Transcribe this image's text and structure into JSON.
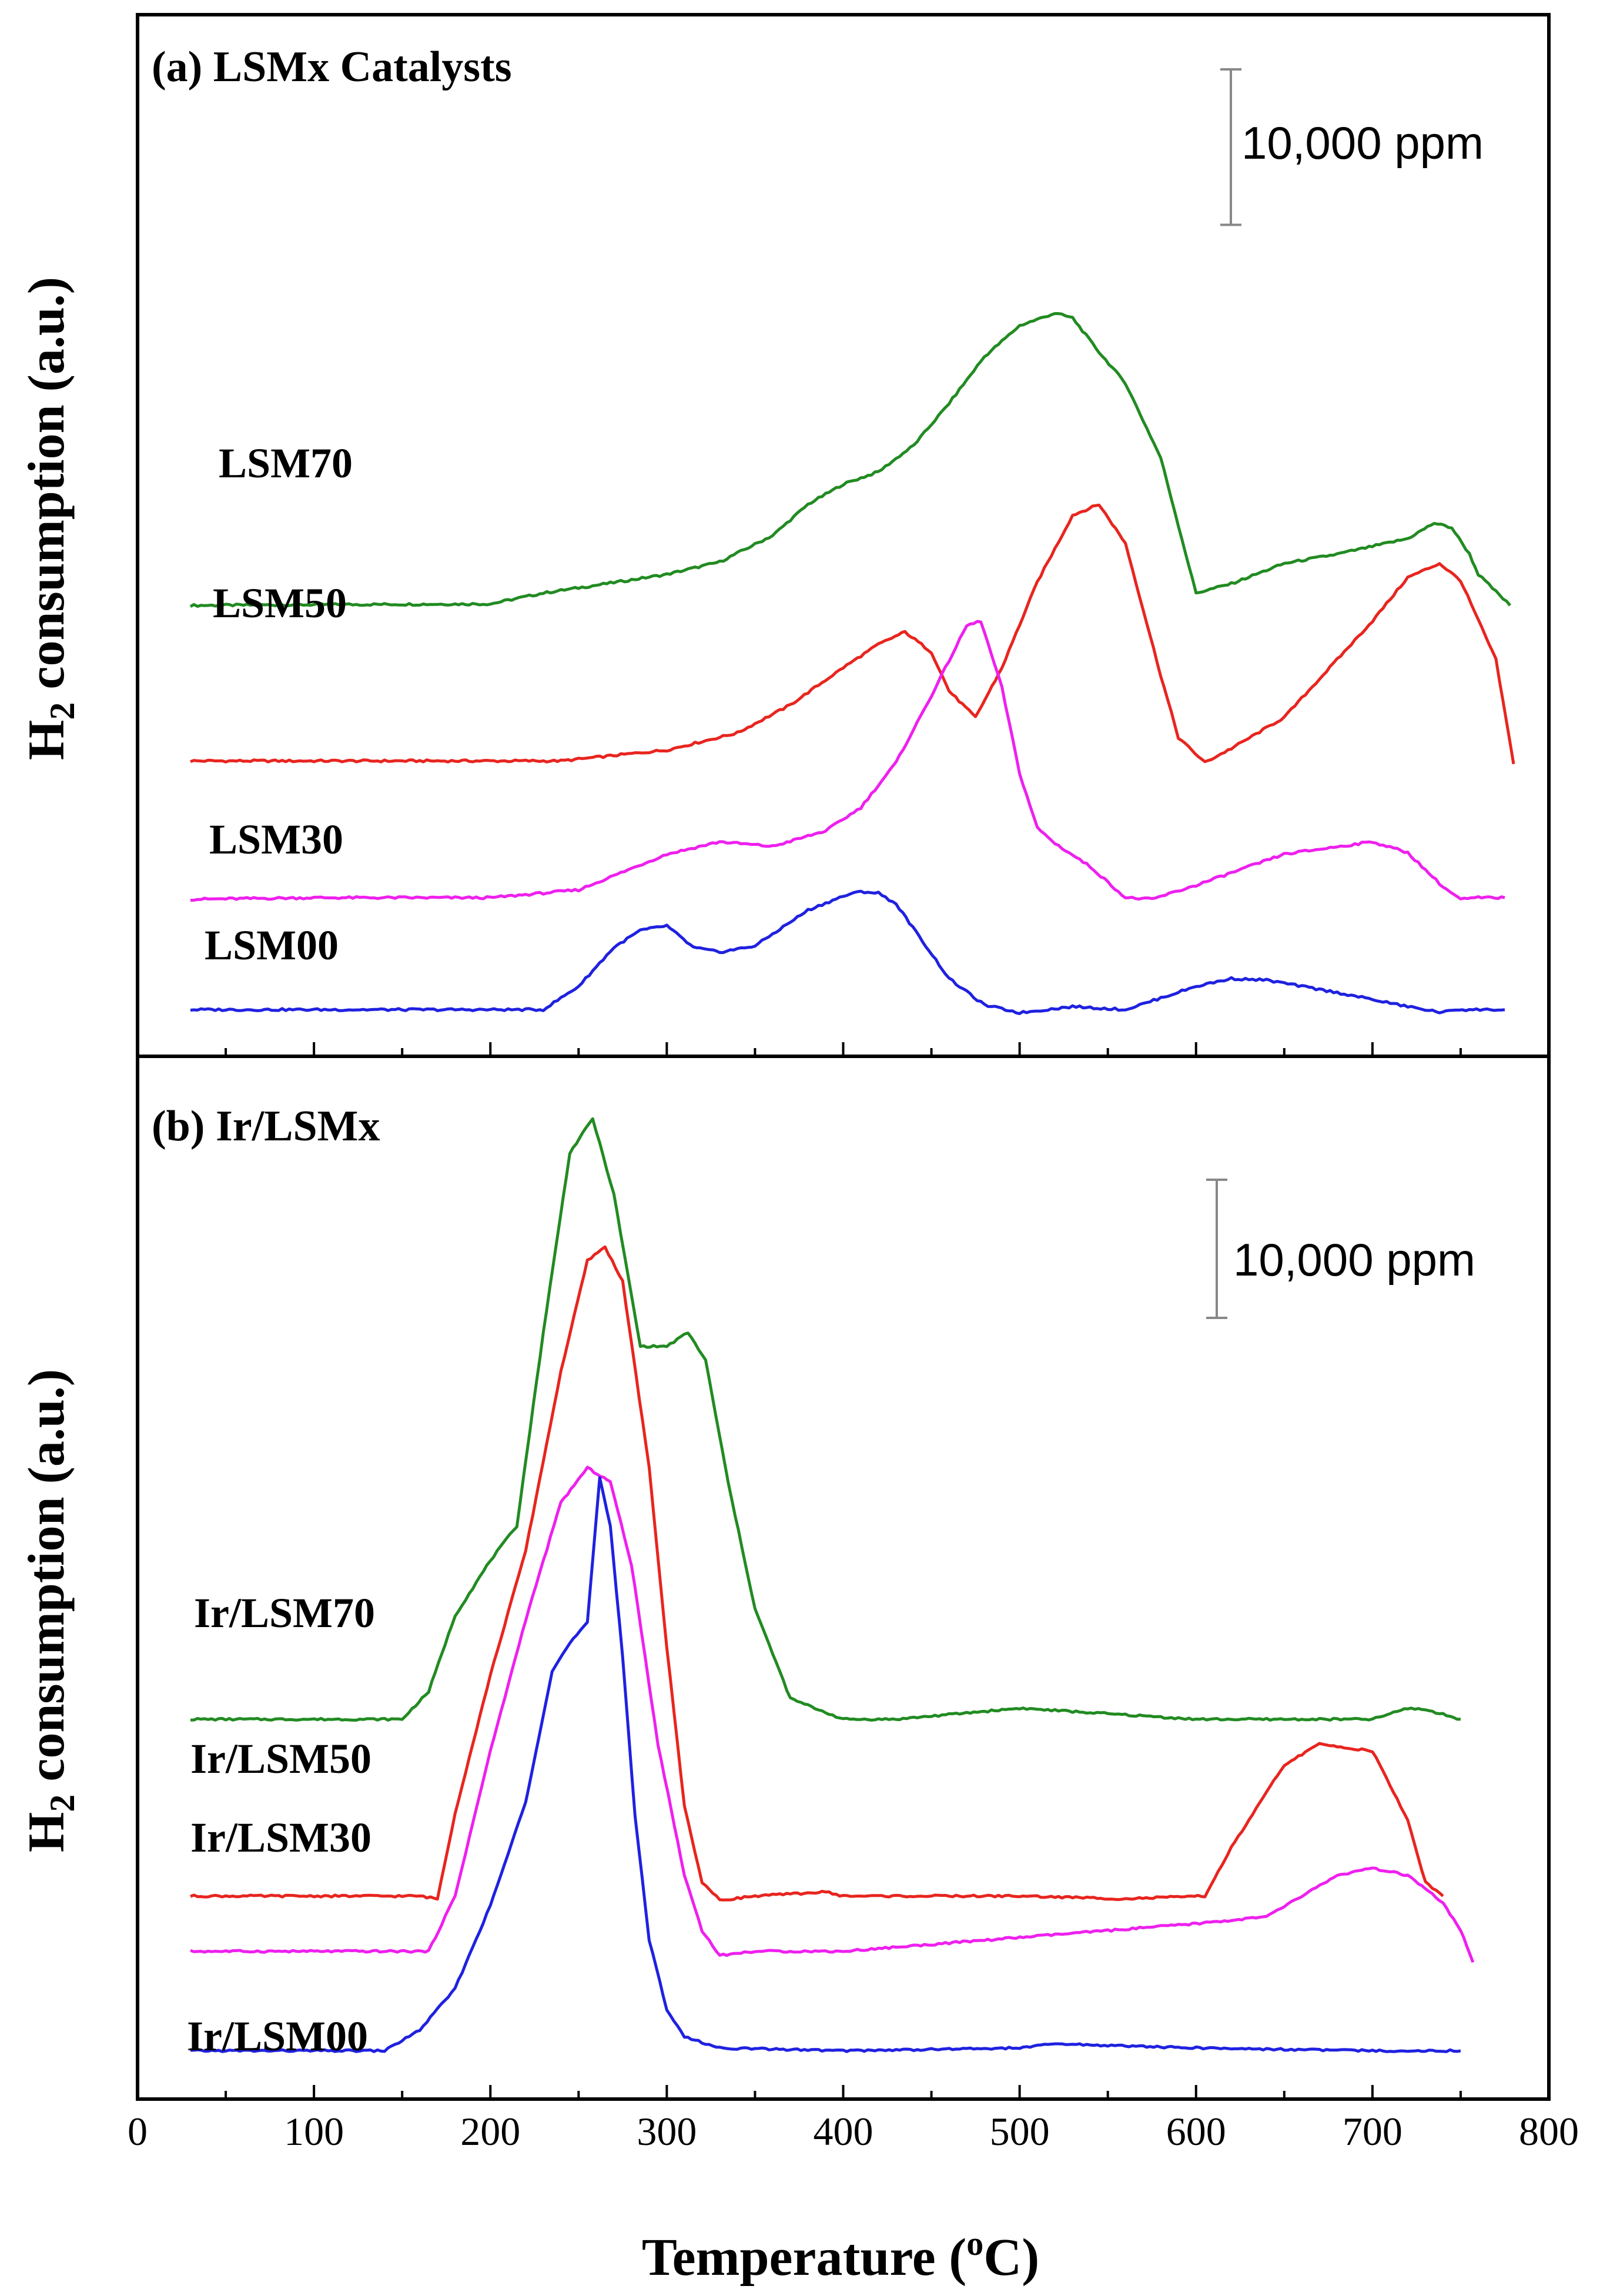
{
  "figure": {
    "xlabel": "Temperature",
    "xlabel_unit_open": " (",
    "xlabel_unit_sup": "o",
    "xlabel_unit_close": "C)"
  },
  "chart_data": [
    {
      "type": "line",
      "panel": "a",
      "title": "(a) LSMx Catalysts",
      "ylabel": {
        "pre": "H",
        "sub": "2",
        "post": " consumption (a.u.)"
      },
      "scale_bar_label": "10,000 ppm",
      "scale_bar_value": 10000,
      "xlim": [
        0,
        800
      ],
      "ylim": [
        -3000,
        64000
      ],
      "xticks": [
        0,
        100,
        200,
        300,
        400,
        500,
        600,
        700,
        800
      ],
      "grid": false,
      "series": [
        {
          "name": "LSM70",
          "color": "#228B22",
          "x": [
            30,
            100,
            200,
            230,
            260,
            300,
            330,
            360,
            380,
            400,
            420,
            440,
            460,
            480,
            500,
            520,
            530,
            545,
            560,
            580,
            600,
            620,
            650,
            680,
            700,
            720,
            735,
            745,
            755,
            760,
            778
          ],
          "y": [
            0,
            50,
            100,
            800,
            1300,
            2000,
            2800,
            4500,
            6500,
            7800,
            8600,
            10300,
            13000,
            16000,
            18000,
            18800,
            18500,
            16300,
            14300,
            9500,
            800,
            1400,
            2700,
            3300,
            3800,
            4300,
            5300,
            5000,
            3300,
            2000,
            0
          ]
        },
        {
          "name": "LSM50",
          "color": "#E8251F",
          "x": [
            30,
            100,
            200,
            240,
            300,
            340,
            370,
            400,
            420,
            435,
            450,
            460,
            475,
            490,
            510,
            530,
            545,
            560,
            580,
            590,
            605,
            620,
            650,
            700,
            720,
            738,
            750,
            770,
            780
          ],
          "y": [
            0,
            0,
            0,
            0,
            700,
            1800,
            3600,
            6000,
            7500,
            8300,
            7000,
            4500,
            2800,
            6000,
            11500,
            15800,
            16500,
            14000,
            5500,
            1500,
            -100,
            800,
            2800,
            9000,
            11800,
            12700,
            11600,
            6500,
            -200
          ]
        },
        {
          "name": "LSM30",
          "color": "#EE20EE",
          "x": [
            30,
            100,
            200,
            250,
            300,
            330,
            360,
            390,
            410,
            430,
            450,
            470,
            478,
            490,
            500,
            510,
            520,
            540,
            560,
            575,
            600,
            650,
            700,
            720,
            740,
            750,
            760,
            775
          ],
          "y": [
            -100,
            0,
            0,
            500,
            2800,
            3600,
            3300,
            4300,
            5800,
            8700,
            13000,
            17500,
            17800,
            13500,
            8000,
            4500,
            3500,
            2000,
            0,
            -100,
            800,
            2800,
            3600,
            2900,
            700,
            -100,
            0,
            0
          ],
          "offset_in_chart_units": 0
        },
        {
          "name": "LSM00",
          "color": "#1F21E0",
          "x": [
            30,
            100,
            200,
            230,
            250,
            270,
            285,
            300,
            315,
            330,
            350,
            380,
            400,
            410,
            420,
            430,
            445,
            460,
            480,
            500,
            530,
            560,
            600,
            620,
            640,
            680,
            720,
            740,
            745,
            775
          ],
          "y": [
            0,
            0,
            0,
            0,
            1500,
            4000,
            5100,
            5400,
            4000,
            3700,
            4100,
            6400,
            7300,
            7600,
            7500,
            6800,
            4400,
            2000,
            300,
            -200,
            200,
            0,
            1500,
            2000,
            1900,
            1100,
            200,
            -200,
            0,
            0
          ]
        }
      ],
      "series_offsets": [
        26000,
        16000,
        7200,
        0
      ],
      "series_label_text": [
        "LSM70",
        "LSM50",
        "LSM30",
        "LSM00"
      ]
    },
    {
      "type": "line",
      "panel": "b",
      "title": "(b) Ir/LSMx",
      "ylabel": {
        "pre": "H",
        "sub": "2",
        "post": " consumption (a.u.)"
      },
      "scale_bar_label": "10,000 ppm",
      "scale_bar_value": 10000,
      "xlim": [
        0,
        800
      ],
      "ylim": [
        -3500,
        72000
      ],
      "xticks": [
        0,
        100,
        200,
        300,
        400,
        500,
        600,
        700,
        800
      ],
      "xtick_labels": [
        "0",
        "100",
        "200",
        "300",
        "400",
        "500",
        "600",
        "700",
        "800"
      ],
      "grid": false,
      "series": [
        {
          "name": "Ir/LSM70",
          "color": "#228B22",
          "x": [
            30,
            100,
            150,
            165,
            180,
            200,
            215,
            230,
            245,
            258,
            270,
            285,
            300,
            312,
            322,
            335,
            350,
            370,
            400,
            430,
            500,
            600,
            700,
            720,
            730,
            750
          ],
          "y": [
            0,
            0,
            0,
            2000,
            7500,
            11500,
            14000,
            28000,
            41000,
            43500,
            38000,
            27000,
            27000,
            28000,
            26000,
            17000,
            8000,
            1500,
            0,
            0,
            800,
            0,
            0,
            800,
            700,
            0
          ]
        },
        {
          "name": "Ir/LSM50",
          "color": "#E8251F",
          "x": [
            30,
            100,
            160,
            170,
            180,
            200,
            220,
            240,
            255,
            265,
            275,
            290,
            300,
            310,
            320,
            330,
            350,
            390,
            400,
            500,
            560,
            605,
            620,
            650,
            670,
            700,
            720,
            730,
            740
          ],
          "y": [
            0,
            0,
            0,
            -200,
            6000,
            16000,
            25000,
            38000,
            46000,
            47000,
            44500,
            31000,
            18000,
            6500,
            1000,
            -300,
            0,
            300,
            0,
            0,
            -200,
            0,
            3500,
            9500,
            11000,
            10500,
            5500,
            1000,
            0
          ]
        },
        {
          "name": "Ir/LSM30",
          "color": "#EE20EE",
          "x": [
            30,
            100,
            165,
            180,
            200,
            220,
            240,
            255,
            268,
            280,
            295,
            310,
            320,
            330,
            350,
            400,
            500,
            600,
            640,
            680,
            700,
            720,
            740,
            750,
            757
          ],
          "y": [
            0,
            0,
            0,
            4000,
            14500,
            24000,
            32500,
            35000,
            34000,
            28000,
            15000,
            5500,
            1500,
            -300,
            0,
            0,
            1000,
            2000,
            2500,
            5500,
            6000,
            5500,
            3500,
            1500,
            -800
          ]
        },
        {
          "name": "Ir/LSM00",
          "color": "#1F21E0",
          "x": [
            30,
            100,
            140,
            160,
            180,
            200,
            220,
            235,
            245,
            255,
            262,
            268,
            275,
            282,
            290,
            300,
            310,
            330,
            400,
            500,
            520,
            600,
            700,
            750
          ],
          "y": [
            0,
            0,
            0,
            1500,
            4500,
            10500,
            18000,
            27500,
            29500,
            31000,
            41500,
            38000,
            28500,
            17000,
            8000,
            3000,
            1000,
            200,
            0,
            200,
            500,
            200,
            0,
            0
          ]
        }
      ],
      "series_offsets": [
        24000,
        11200,
        7200,
        0
      ],
      "series_label_text": [
        "Ir/LSM70",
        "Ir/LSM50",
        "Ir/LSM30",
        "Ir/LSM00"
      ]
    }
  ]
}
